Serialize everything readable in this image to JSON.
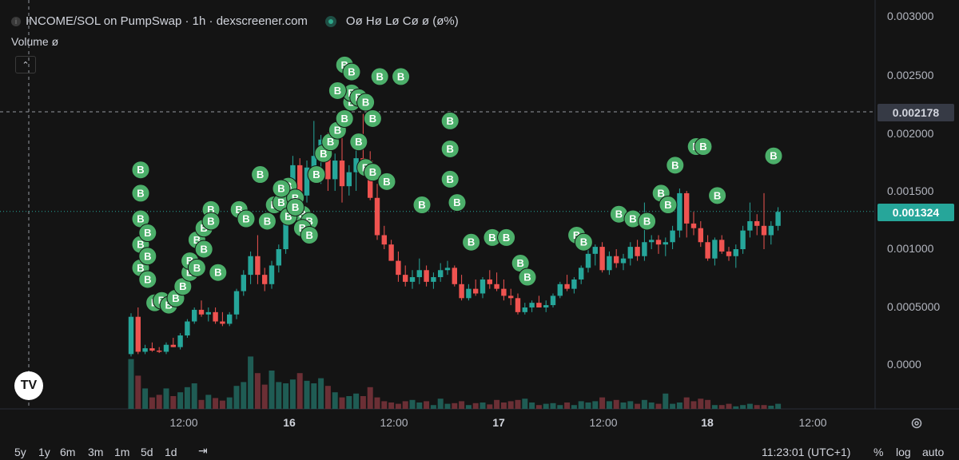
{
  "header": {
    "title": "INCOME/SOL on PumpSwap · 1h · dexscreener.com",
    "ohlc": "Oø Hø Lø Cø ø (ø%)",
    "volume": "Volume ø"
  },
  "price_axis": {
    "labels": [
      "0.003000",
      "0.002500",
      "0.002000",
      "0.001500",
      "0.001000",
      "0.0005000",
      "0.0000"
    ],
    "crosshair_price": "0.002178",
    "last_price": "0.001324"
  },
  "time_axis": {
    "labels": [
      {
        "text": "12:00",
        "bold": false
      },
      {
        "text": "16",
        "bold": true
      },
      {
        "text": "12:00",
        "bold": false
      },
      {
        "text": "17",
        "bold": true
      },
      {
        "text": "12:00",
        "bold": false
      },
      {
        "text": "18",
        "bold": true
      },
      {
        "text": "12:00",
        "bold": false
      }
    ]
  },
  "bottom_bar": {
    "ranges": [
      "5y",
      "1y",
      "6m",
      "3m",
      "1m",
      "5d",
      "1d"
    ],
    "clock": "11:23:01 (UTC+1)",
    "percent": "%",
    "log": "log",
    "auto": "auto"
  },
  "colors": {
    "up": "#26a69a",
    "down": "#ef5350",
    "bg": "#141414",
    "buy_marker": "#4caf6a"
  },
  "icons": [
    "info-icon",
    "eye-icon",
    "chevron-up-icon",
    "tradingview-logo",
    "gear-icon",
    "calendar-range-icon"
  ],
  "chart_data": {
    "type": "candlestick",
    "ylim": [
      -0.0005,
      0.003
    ],
    "candles": [
      [
        0.0001,
        0.00045,
        8e-05,
        0.00042
      ],
      [
        0.00042,
        0.0005,
        0.0001,
        0.00012
      ],
      [
        0.00012,
        0.00018,
        0.0001,
        0.00015
      ],
      [
        0.00015,
        0.0002,
        0.00012,
        0.00013
      ],
      [
        0.00013,
        0.00016,
        0.00011,
        0.00012
      ],
      [
        0.00012,
        0.0002,
        0.0001,
        0.00018
      ],
      [
        0.00018,
        0.00024,
        0.00016,
        0.00016
      ],
      [
        0.00016,
        0.00028,
        0.00014,
        0.00026
      ],
      [
        0.00026,
        0.0004,
        0.00024,
        0.00038
      ],
      [
        0.00038,
        0.0005,
        0.00036,
        0.00048
      ],
      [
        0.00048,
        0.00056,
        0.00042,
        0.00044
      ],
      [
        0.00044,
        0.0005,
        0.00038,
        0.00046
      ],
      [
        0.00046,
        0.0005,
        0.00036,
        0.00038
      ],
      [
        0.00038,
        0.00046,
        0.00034,
        0.00036
      ],
      [
        0.00036,
        0.00046,
        0.00034,
        0.00044
      ],
      [
        0.00044,
        0.00066,
        0.0004,
        0.00064
      ],
      [
        0.00064,
        0.00082,
        0.0006,
        0.00078
      ],
      [
        0.00078,
        0.00098,
        0.0007,
        0.00094
      ],
      [
        0.00094,
        0.00112,
        0.0007,
        0.00078
      ],
      [
        0.00078,
        0.00084,
        0.00064,
        0.0007
      ],
      [
        0.0007,
        0.0009,
        0.00066,
        0.00086
      ],
      [
        0.00086,
        0.00104,
        0.0008,
        0.001
      ],
      [
        0.001,
        0.00142,
        0.00096,
        0.00138
      ],
      [
        0.00138,
        0.0018,
        0.0013,
        0.00172
      ],
      [
        0.00172,
        0.00178,
        0.0013,
        0.00146
      ],
      [
        0.00146,
        0.00176,
        0.0014,
        0.0017
      ],
      [
        0.0017,
        0.0021,
        0.0016,
        0.0018
      ],
      [
        0.0018,
        0.00198,
        0.00156,
        0.00194
      ],
      [
        0.00194,
        0.002,
        0.0015,
        0.0016
      ],
      [
        0.0016,
        0.00182,
        0.0015,
        0.00176
      ],
      [
        0.00176,
        0.00196,
        0.0014,
        0.00154
      ],
      [
        0.00154,
        0.00172,
        0.00146,
        0.00166
      ],
      [
        0.00166,
        0.00196,
        0.0015,
        0.00178
      ],
      [
        0.00178,
        0.00216,
        0.0017,
        0.00176
      ],
      [
        0.00176,
        0.00184,
        0.00142,
        0.00144
      ],
      [
        0.00144,
        0.00156,
        0.00108,
        0.00112
      ],
      [
        0.00112,
        0.0012,
        0.001,
        0.00104
      ],
      [
        0.00104,
        0.00108,
        0.0009,
        0.0009
      ],
      [
        0.0009,
        0.00098,
        0.00072,
        0.00078
      ],
      [
        0.00078,
        0.00086,
        0.00068,
        0.00072
      ],
      [
        0.00072,
        0.00082,
        0.00066,
        0.00076
      ],
      [
        0.00076,
        0.00092,
        0.0007,
        0.00082
      ],
      [
        0.00082,
        0.00086,
        0.00068,
        0.00072
      ],
      [
        0.00072,
        0.0008,
        0.00066,
        0.00076
      ],
      [
        0.00076,
        0.00088,
        0.00072,
        0.00082
      ],
      [
        0.00082,
        0.0009,
        0.00078,
        0.00084
      ],
      [
        0.00084,
        0.00086,
        0.00068,
        0.0007
      ],
      [
        0.0007,
        0.00078,
        0.00056,
        0.00058
      ],
      [
        0.00058,
        0.0007,
        0.00056,
        0.00066
      ],
      [
        0.00066,
        0.00074,
        0.0006,
        0.00062
      ],
      [
        0.00062,
        0.00076,
        0.00058,
        0.00074
      ],
      [
        0.00074,
        0.00082,
        0.00066,
        0.0007
      ],
      [
        0.0007,
        0.0008,
        0.00064,
        0.00066
      ],
      [
        0.00066,
        0.00074,
        0.00056,
        0.0006
      ],
      [
        0.0006,
        0.00066,
        0.00052,
        0.00058
      ],
      [
        0.00058,
        0.00062,
        0.00044,
        0.00046
      ],
      [
        0.00046,
        0.00054,
        0.00044,
        0.0005
      ],
      [
        0.0005,
        0.00056,
        0.00046,
        0.00054
      ],
      [
        0.00054,
        0.0006,
        0.0005,
        0.0005
      ],
      [
        0.0005,
        0.00056,
        0.00046,
        0.00052
      ],
      [
        0.00052,
        0.00062,
        0.0005,
        0.0006
      ],
      [
        0.0006,
        0.00072,
        0.00058,
        0.0007
      ],
      [
        0.0007,
        0.00078,
        0.00064,
        0.00066
      ],
      [
        0.00066,
        0.00076,
        0.00062,
        0.00074
      ],
      [
        0.00074,
        0.00086,
        0.0007,
        0.00084
      ],
      [
        0.00084,
        0.001,
        0.0008,
        0.00096
      ],
      [
        0.00096,
        0.00104,
        0.00086,
        0.00102
      ],
      [
        0.00102,
        0.00106,
        0.0008,
        0.00082
      ],
      [
        0.00082,
        0.00098,
        0.00078,
        0.00094
      ],
      [
        0.00094,
        0.001,
        0.00084,
        0.00088
      ],
      [
        0.00088,
        0.00096,
        0.00082,
        0.00092
      ],
      [
        0.00092,
        0.00106,
        0.00086,
        0.00102
      ],
      [
        0.00102,
        0.00108,
        0.0009,
        0.00094
      ],
      [
        0.00094,
        0.0014,
        0.0009,
        0.00106
      ],
      [
        0.00106,
        0.00112,
        0.001,
        0.00108
      ],
      [
        0.00108,
        0.00112,
        0.00096,
        0.00104
      ],
      [
        0.00104,
        0.0011,
        0.00094,
        0.00106
      ],
      [
        0.00106,
        0.0012,
        0.001,
        0.00116
      ],
      [
        0.00116,
        0.00152,
        0.0011,
        0.00148
      ],
      [
        0.00148,
        0.0015,
        0.0011,
        0.00122
      ],
      [
        0.00122,
        0.00132,
        0.00112,
        0.00118
      ],
      [
        0.00118,
        0.00124,
        0.00102,
        0.00106
      ],
      [
        0.00106,
        0.00112,
        0.0009,
        0.00092
      ],
      [
        0.00092,
        0.0011,
        0.00086,
        0.00108
      ],
      [
        0.00108,
        0.00112,
        0.00096,
        0.00098
      ],
      [
        0.00098,
        0.00102,
        0.0009,
        0.00094
      ],
      [
        0.00094,
        0.00104,
        0.00084,
        0.001
      ],
      [
        0.001,
        0.0012,
        0.00096,
        0.00116
      ],
      [
        0.00116,
        0.0014,
        0.0011,
        0.00124
      ],
      [
        0.00124,
        0.0013,
        0.00112,
        0.0012
      ],
      [
        0.0012,
        0.00148,
        0.001,
        0.00112
      ],
      [
        0.00112,
        0.00124,
        0.00104,
        0.0012
      ],
      [
        0.0012,
        0.00136,
        0.00116,
        0.00132
      ]
    ],
    "volumes": [
      0.78,
      0.52,
      0.32,
      0.18,
      0.22,
      0.32,
      0.2,
      0.26,
      0.34,
      0.4,
      0.14,
      0.22,
      0.17,
      0.13,
      0.18,
      0.36,
      0.42,
      0.82,
      0.56,
      0.38,
      0.6,
      0.42,
      0.4,
      0.46,
      0.56,
      0.44,
      0.4,
      0.48,
      0.36,
      0.26,
      0.18,
      0.2,
      0.24,
      0.2,
      0.34,
      0.18,
      0.12,
      0.1,
      0.08,
      0.12,
      0.14,
      0.1,
      0.12,
      0.06,
      0.16,
      0.08,
      0.09,
      0.12,
      0.06,
      0.09,
      0.1,
      0.07,
      0.14,
      0.1,
      0.12,
      0.14,
      0.16,
      0.1,
      0.06,
      0.08,
      0.09,
      0.06,
      0.1,
      0.06,
      0.12,
      0.1,
      0.12,
      0.18,
      0.12,
      0.14,
      0.1,
      0.12,
      0.08,
      0.14,
      0.1,
      0.08,
      0.24,
      0.08,
      0.1,
      0.18,
      0.12,
      0.16,
      0.14,
      0.06,
      0.06,
      0.08,
      0.04,
      0.06,
      0.08,
      0.06,
      0.06,
      0.05,
      0.08,
      0.06
    ],
    "buy_markers": [
      [
        0,
        0.00168
      ],
      [
        0,
        0.00148
      ],
      [
        0,
        0.00126
      ],
      [
        0,
        0.00104
      ],
      [
        0,
        0.00084
      ],
      [
        1,
        0.00094
      ],
      [
        1,
        0.00114
      ],
      [
        1,
        0.00074
      ],
      [
        2,
        0.00054
      ],
      [
        3,
        0.00056
      ],
      [
        4,
        0.00052
      ],
      [
        5,
        0.00058
      ],
      [
        6,
        0.00068
      ],
      [
        7,
        0.0008
      ],
      [
        8,
        0.00108
      ],
      [
        9,
        0.00118
      ],
      [
        10,
        0.00134
      ],
      [
        7,
        0.0009
      ],
      [
        8,
        0.00084
      ],
      [
        9,
        0.001
      ],
      [
        10,
        0.00124
      ],
      [
        11,
        0.0008
      ],
      [
        18,
        0.00124
      ],
      [
        19,
        0.00138
      ],
      [
        20,
        0.0014
      ],
      [
        21,
        0.00154
      ],
      [
        22,
        0.00144
      ],
      [
        23,
        0.0013
      ],
      [
        24,
        0.00124
      ],
      [
        25,
        0.00164
      ],
      [
        26,
        0.00182
      ],
      [
        27,
        0.00192
      ],
      [
        28,
        0.00202
      ],
      [
        29,
        0.00212
      ],
      [
        30,
        0.00226
      ],
      [
        30,
        0.00234
      ],
      [
        31,
        0.0023
      ],
      [
        32,
        0.00226
      ],
      [
        33,
        0.00212
      ],
      [
        34,
        0.00248
      ],
      [
        28,
        0.00236
      ],
      [
        29,
        0.00258
      ],
      [
        30,
        0.00252
      ],
      [
        31,
        0.00192
      ],
      [
        32,
        0.0017
      ],
      [
        33,
        0.00166
      ],
      [
        35,
        0.00158
      ],
      [
        37,
        0.00248
      ],
      [
        40,
        0.00138
      ],
      [
        44,
        0.0021
      ],
      [
        44,
        0.00186
      ],
      [
        44,
        0.0016
      ],
      [
        45,
        0.0014
      ],
      [
        47,
        0.00106
      ],
      [
        50,
        0.0011
      ],
      [
        52,
        0.0011
      ],
      [
        54,
        0.00088
      ],
      [
        55,
        0.00076
      ],
      [
        62,
        0.00112
      ],
      [
        63,
        0.00106
      ],
      [
        68,
        0.0013
      ],
      [
        70,
        0.00126
      ],
      [
        72,
        0.00124
      ],
      [
        74,
        0.00148
      ],
      [
        75,
        0.00138
      ],
      [
        76,
        0.00172
      ],
      [
        79,
        0.00188
      ],
      [
        80,
        0.00188
      ],
      [
        82,
        0.00146
      ],
      [
        90,
        0.0018
      ],
      [
        17,
        0.00164
      ],
      [
        20,
        0.00152
      ],
      [
        21,
        0.00128
      ],
      [
        22,
        0.00136
      ],
      [
        23,
        0.00118
      ],
      [
        24,
        0.00112
      ],
      [
        14,
        0.00134
      ],
      [
        15,
        0.00126
      ]
    ],
    "ref_lines": {
      "crosshair": 0.002178,
      "last": 0.001324
    }
  }
}
